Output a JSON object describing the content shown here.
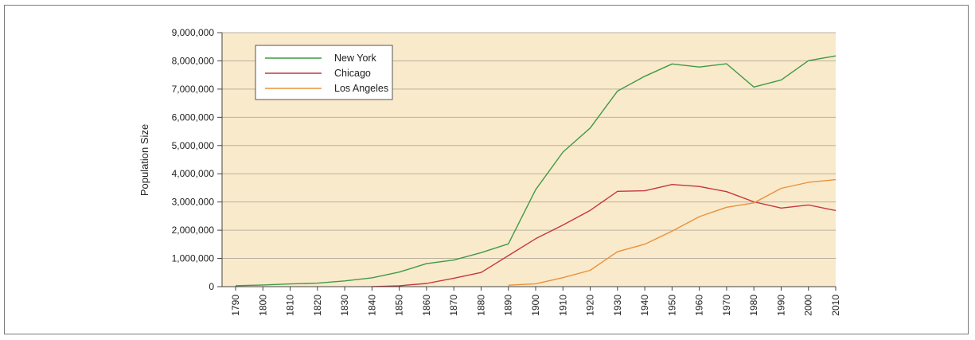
{
  "chart_data": {
    "type": "line",
    "title": "",
    "xlabel": "",
    "ylabel": "Population Size",
    "x": [
      1790,
      1800,
      1810,
      1820,
      1830,
      1840,
      1850,
      1860,
      1870,
      1880,
      1890,
      1900,
      1910,
      1920,
      1930,
      1940,
      1950,
      1960,
      1970,
      1980,
      1990,
      2000,
      2010
    ],
    "x_tick_labels": [
      "1790",
      "1800",
      "1810",
      "1820",
      "1830",
      "1840",
      "1850",
      "1860",
      "1870",
      "1880",
      "1890",
      "1900",
      "1910",
      "1920",
      "1930",
      "1940",
      "1950",
      "1960",
      "1970",
      "1980",
      "1990",
      "2000",
      "2010"
    ],
    "ylim": [
      0,
      9000000
    ],
    "y_ticks": [
      0,
      1000000,
      2000000,
      3000000,
      4000000,
      5000000,
      6000000,
      7000000,
      8000000,
      9000000
    ],
    "y_tick_labels": [
      "0",
      "1,000,000",
      "2,000,000",
      "3,000,000",
      "4,000,000",
      "5,000,000",
      "6,000,000",
      "7,000,000",
      "8,000,000",
      "9,000,000"
    ],
    "grid": true,
    "legend_position": "top-left",
    "plot_background": "#faeacc",
    "series": [
      {
        "name": "New York",
        "color": "#3f9a47",
        "values": [
          33000,
          60000,
          96000,
          124000,
          203000,
          313000,
          516000,
          814000,
          942000,
          1206000,
          1515000,
          3437000,
          4767000,
          5620000,
          6930000,
          7455000,
          7892000,
          7782000,
          7896000,
          7072000,
          7323000,
          8008000,
          8175000
        ]
      },
      {
        "name": "Chicago",
        "color": "#c6373c",
        "values": [
          null,
          null,
          null,
          null,
          null,
          4000,
          30000,
          112000,
          299000,
          503000,
          1100000,
          1699000,
          2185000,
          2702000,
          3376000,
          3397000,
          3621000,
          3550000,
          3367000,
          3005000,
          2784000,
          2896000,
          2696000
        ]
      },
      {
        "name": "Los Angeles",
        "color": "#e8913b",
        "values": [
          null,
          null,
          null,
          null,
          null,
          null,
          null,
          null,
          null,
          null,
          50000,
          102000,
          319000,
          577000,
          1238000,
          1504000,
          1970000,
          2479000,
          2812000,
          2967000,
          3485000,
          3695000,
          3793000
        ]
      }
    ]
  }
}
